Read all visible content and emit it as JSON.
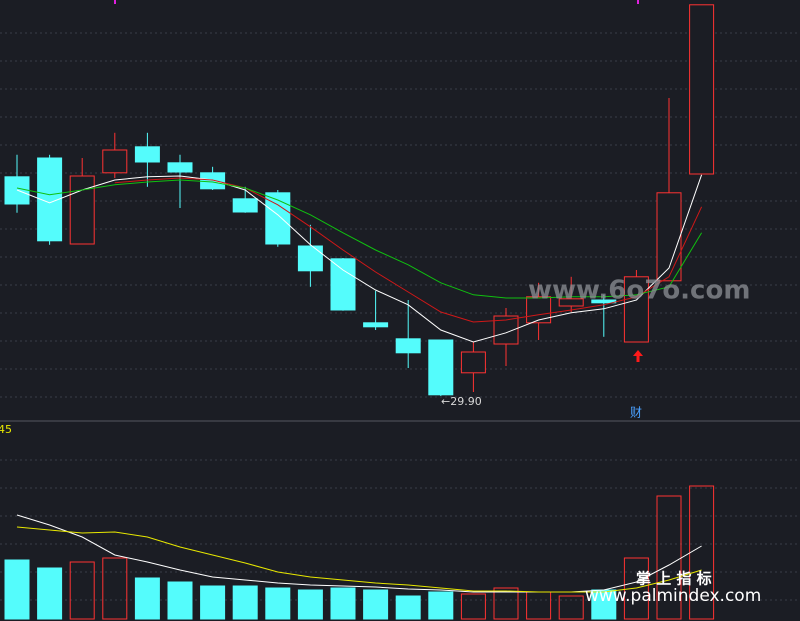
{
  "chart_data": [
    {
      "type": "candlestick",
      "open": [
        35.38,
        35.85,
        33.7,
        35.48,
        36.13,
        35.73,
        35.48,
        34.83,
        34.98,
        33.65,
        33.33,
        31.73,
        31.33,
        31.3,
        30.48,
        31.2,
        31.73,
        32.15,
        32.3,
        31.25,
        32.78,
        35.45
      ],
      "high": [
        35.93,
        35.93,
        35.85,
        36.48,
        36.48,
        35.93,
        35.63,
        35.13,
        35.05,
        34.18,
        33.35,
        32.53,
        32.3,
        31.3,
        31.25,
        32.1,
        32.73,
        32.88,
        32.43,
        33.05,
        37.35,
        39.68
      ],
      "low": [
        34.48,
        33.68,
        33.7,
        35.35,
        35.13,
        34.6,
        35.05,
        34.48,
        33.63,
        32.63,
        32.03,
        31.55,
        30.6,
        29.9,
        30.0,
        30.65,
        31.3,
        32.0,
        31.38,
        31.25,
        32.78,
        35.45
      ],
      "close": [
        34.7,
        33.78,
        35.4,
        36.05,
        35.75,
        35.5,
        35.08,
        34.5,
        33.7,
        33.03,
        32.05,
        31.63,
        30.98,
        29.93,
        31.0,
        31.9,
        32.38,
        32.33,
        32.23,
        32.88,
        34.98,
        39.68
      ],
      "up_color": "#ff3232",
      "down_color": "#54fcfc",
      "lines": [
        {
          "color": "#ffffff",
          "values": [
            35.05,
            34.73,
            35.05,
            35.3,
            35.38,
            35.4,
            35.3,
            35.05,
            34.43,
            33.68,
            33.05,
            32.55,
            32.18,
            31.55,
            31.25,
            31.48,
            31.8,
            31.98,
            32.08,
            32.3,
            33.1,
            35.43
          ]
        },
        {
          "color": "#d01818",
          "values": [
            null,
            null,
            null,
            35.23,
            35.3,
            35.35,
            35.3,
            35.1,
            34.68,
            34.13,
            33.55,
            33.0,
            32.5,
            32.0,
            31.75,
            31.8,
            31.93,
            32.05,
            32.18,
            32.38,
            32.88,
            34.63
          ]
        },
        {
          "color": "#10c010",
          "values": [
            35.1,
            34.93,
            35.05,
            35.18,
            35.25,
            35.3,
            35.25,
            35.1,
            34.8,
            34.43,
            33.98,
            33.55,
            33.18,
            32.73,
            32.43,
            32.35,
            32.35,
            32.38,
            32.38,
            32.43,
            32.63,
            33.98
          ]
        }
      ],
      "ylim": [
        29.3,
        39.8
      ],
      "low_label": "←29.90",
      "note": "财"
    },
    {
      "type": "bar",
      "label": "45",
      "values": [
        59,
        51,
        57,
        61,
        41,
        37,
        33,
        33,
        31,
        29,
        31,
        29,
        23,
        27,
        25,
        31,
        27,
        23,
        29,
        61,
        123,
        133
      ],
      "up": [
        false,
        false,
        true,
        true,
        false,
        false,
        false,
        false,
        false,
        false,
        false,
        false,
        false,
        false,
        true,
        true,
        true,
        true,
        false,
        true,
        true,
        true
      ],
      "up_color": "#ff3232",
      "down_color": "#54fcfc",
      "lines": [
        {
          "color": "#ffffff",
          "values": [
            104,
            94,
            82,
            64,
            57,
            49,
            42,
            39,
            36,
            34,
            33,
            32,
            30,
            29,
            27,
            27,
            27,
            27,
            29,
            37,
            54,
            73
          ]
        },
        {
          "color": "#e8e800",
          "values": [
            92,
            89,
            86,
            87,
            82,
            72,
            64,
            56,
            47,
            42,
            39,
            36,
            34,
            31,
            28,
            28,
            27,
            27,
            27,
            31,
            39,
            49
          ]
        }
      ],
      "ylim": [
        0,
        189
      ]
    }
  ],
  "watermarks": [
    "www.6o7o.com",
    "掌 上 指 标",
    "www.palmindex.com"
  ]
}
